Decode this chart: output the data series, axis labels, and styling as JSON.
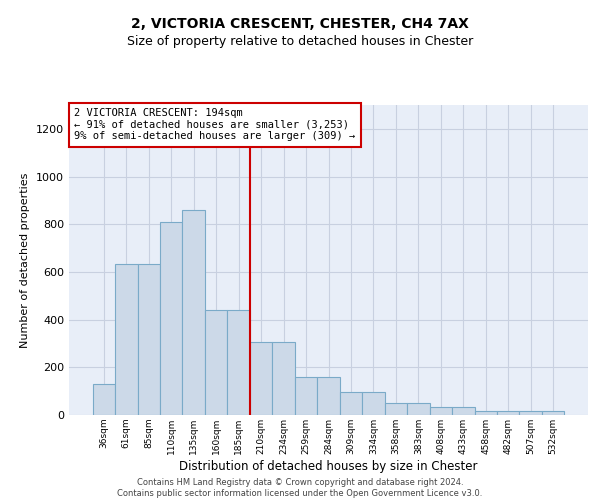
{
  "title1": "2, VICTORIA CRESCENT, CHESTER, CH4 7AX",
  "title2": "Size of property relative to detached houses in Chester",
  "xlabel": "Distribution of detached houses by size in Chester",
  "ylabel": "Number of detached properties",
  "categories": [
    "36sqm",
    "61sqm",
    "85sqm",
    "110sqm",
    "135sqm",
    "160sqm",
    "185sqm",
    "210sqm",
    "234sqm",
    "259sqm",
    "284sqm",
    "309sqm",
    "334sqm",
    "358sqm",
    "383sqm",
    "408sqm",
    "433sqm",
    "458sqm",
    "482sqm",
    "507sqm",
    "532sqm"
  ],
  "bar_values": [
    130,
    635,
    635,
    810,
    860,
    440,
    440,
    305,
    305,
    160,
    160,
    95,
    95,
    50,
    50,
    35,
    35,
    18,
    18,
    18,
    18
  ],
  "bar_color": "#ccd9e8",
  "bar_edge_color": "#7aaac8",
  "highlight_bar_index": 7,
  "vline_color": "#cc0000",
  "vline_x": 6.5,
  "ylim": [
    0,
    1300
  ],
  "yticks": [
    0,
    200,
    400,
    600,
    800,
    1000,
    1200
  ],
  "annotation_box_text": "2 VICTORIA CRESCENT: 194sqm\n← 91% of detached houses are smaller (3,253)\n9% of semi-detached houses are larger (309) →",
  "footer_line1": "Contains HM Land Registry data © Crown copyright and database right 2024.",
  "footer_line2": "Contains public sector information licensed under the Open Government Licence v3.0.",
  "grid_color": "#c8d0e0",
  "background_color": "#e8eef8",
  "title1_fontsize": 10,
  "title2_fontsize": 9
}
